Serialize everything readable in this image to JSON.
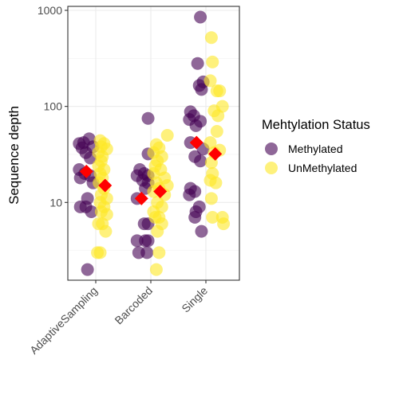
{
  "chart_data": {
    "type": "scatter",
    "title": "",
    "xlabel": "",
    "ylabel": "Sequence depth",
    "y_scale": "log10",
    "ylim": [
      1.55,
      1100
    ],
    "y_ticks": [
      10,
      100,
      1000
    ],
    "y_tick_labels": [
      "10",
      "100",
      "1000"
    ],
    "grid": true,
    "legend_position": "right",
    "legend_title": "Mehtylation Status",
    "categories": [
      "AdaptiveSampling",
      "Barcoded",
      "Single"
    ],
    "series": [
      {
        "name": "Methylated",
        "color": "#440154",
        "points": [
          {
            "category": "AdaptiveSampling",
            "offset": -0.3,
            "y": 41
          },
          {
            "category": "AdaptiveSampling",
            "offset": -0.22,
            "y": 42
          },
          {
            "category": "AdaptiveSampling",
            "offset": -0.12,
            "y": 46
          },
          {
            "category": "AdaptiveSampling",
            "offset": -0.25,
            "y": 37
          },
          {
            "category": "AdaptiveSampling",
            "offset": -0.18,
            "y": 33
          },
          {
            "category": "AdaptiveSampling",
            "offset": -0.05,
            "y": 38
          },
          {
            "category": "AdaptiveSampling",
            "offset": -0.1,
            "y": 29
          },
          {
            "category": "AdaptiveSampling",
            "offset": -0.3,
            "y": 22
          },
          {
            "category": "AdaptiveSampling",
            "offset": -0.2,
            "y": 20
          },
          {
            "category": "AdaptiveSampling",
            "offset": -0.28,
            "y": 18
          },
          {
            "category": "AdaptiveSampling",
            "offset": -0.1,
            "y": 19
          },
          {
            "category": "AdaptiveSampling",
            "offset": -0.05,
            "y": 16
          },
          {
            "category": "AdaptiveSampling",
            "offset": -0.15,
            "y": 11
          },
          {
            "category": "AdaptiveSampling",
            "offset": -0.28,
            "y": 9
          },
          {
            "category": "AdaptiveSampling",
            "offset": -0.18,
            "y": 9
          },
          {
            "category": "AdaptiveSampling",
            "offset": -0.08,
            "y": 8
          },
          {
            "category": "AdaptiveSampling",
            "offset": -0.15,
            "y": 2
          },
          {
            "category": "Barcoded",
            "offset": -0.05,
            "y": 75
          },
          {
            "category": "Barcoded",
            "offset": -0.05,
            "y": 32
          },
          {
            "category": "Barcoded",
            "offset": -0.2,
            "y": 22
          },
          {
            "category": "Barcoded",
            "offset": -0.12,
            "y": 20
          },
          {
            "category": "Barcoded",
            "offset": -0.25,
            "y": 19
          },
          {
            "category": "Barcoded",
            "offset": -0.05,
            "y": 19
          },
          {
            "category": "Barcoded",
            "offset": -0.15,
            "y": 17
          },
          {
            "category": "Barcoded",
            "offset": -0.05,
            "y": 16
          },
          {
            "category": "Barcoded",
            "offset": -0.1,
            "y": 14
          },
          {
            "category": "Barcoded",
            "offset": -0.25,
            "y": 11
          },
          {
            "category": "Barcoded",
            "offset": -0.12,
            "y": 6
          },
          {
            "category": "Barcoded",
            "offset": -0.05,
            "y": 6
          },
          {
            "category": "Barcoded",
            "offset": -0.25,
            "y": 4
          },
          {
            "category": "Barcoded",
            "offset": -0.1,
            "y": 4
          },
          {
            "category": "Barcoded",
            "offset": -0.05,
            "y": 4
          },
          {
            "category": "Barcoded",
            "offset": -0.22,
            "y": 3
          },
          {
            "category": "Barcoded",
            "offset": -0.07,
            "y": 3
          },
          {
            "category": "Single",
            "offset": -0.1,
            "y": 850
          },
          {
            "category": "Single",
            "offset": -0.15,
            "y": 280
          },
          {
            "category": "Single",
            "offset": -0.05,
            "y": 180
          },
          {
            "category": "Single",
            "offset": -0.12,
            "y": 165
          },
          {
            "category": "Single",
            "offset": -0.08,
            "y": 150
          },
          {
            "category": "Single",
            "offset": -0.28,
            "y": 88
          },
          {
            "category": "Single",
            "offset": -0.22,
            "y": 80
          },
          {
            "category": "Single",
            "offset": -0.3,
            "y": 73
          },
          {
            "category": "Single",
            "offset": -0.1,
            "y": 70
          },
          {
            "category": "Single",
            "offset": -0.18,
            "y": 63
          },
          {
            "category": "Single",
            "offset": -0.28,
            "y": 42
          },
          {
            "category": "Single",
            "offset": -0.05,
            "y": 36
          },
          {
            "category": "Single",
            "offset": -0.2,
            "y": 30
          },
          {
            "category": "Single",
            "offset": -0.1,
            "y": 27
          },
          {
            "category": "Single",
            "offset": -0.28,
            "y": 14
          },
          {
            "category": "Single",
            "offset": -0.2,
            "y": 13
          },
          {
            "category": "Single",
            "offset": -0.3,
            "y": 12
          },
          {
            "category": "Single",
            "offset": -0.12,
            "y": 9
          },
          {
            "category": "Single",
            "offset": -0.18,
            "y": 8
          },
          {
            "category": "Single",
            "offset": -0.2,
            "y": 7
          },
          {
            "category": "Single",
            "offset": -0.08,
            "y": 5
          }
        ]
      },
      {
        "name": "UnMethylated",
        "color": "#fde725",
        "points": [
          {
            "category": "AdaptiveSampling",
            "offset": 0.08,
            "y": 44
          },
          {
            "category": "AdaptiveSampling",
            "offset": 0.15,
            "y": 41
          },
          {
            "category": "AdaptiveSampling",
            "offset": 0.1,
            "y": 38
          },
          {
            "category": "AdaptiveSampling",
            "offset": 0.2,
            "y": 36
          },
          {
            "category": "AdaptiveSampling",
            "offset": 0.05,
            "y": 33
          },
          {
            "category": "AdaptiveSampling",
            "offset": 0.12,
            "y": 30
          },
          {
            "category": "AdaptiveSampling",
            "offset": 0.1,
            "y": 27
          },
          {
            "category": "AdaptiveSampling",
            "offset": 0.05,
            "y": 24
          },
          {
            "category": "AdaptiveSampling",
            "offset": 0.15,
            "y": 22
          },
          {
            "category": "AdaptiveSampling",
            "offset": 0.08,
            "y": 20
          },
          {
            "category": "AdaptiveSampling",
            "offset": 0.12,
            "y": 18
          },
          {
            "category": "AdaptiveSampling",
            "offset": 0.06,
            "y": 16
          },
          {
            "category": "AdaptiveSampling",
            "offset": 0.15,
            "y": 14
          },
          {
            "category": "AdaptiveSampling",
            "offset": 0.1,
            "y": 12
          },
          {
            "category": "AdaptiveSampling",
            "offset": 0.2,
            "y": 11
          },
          {
            "category": "AdaptiveSampling",
            "offset": 0.08,
            "y": 10
          },
          {
            "category": "AdaptiveSampling",
            "offset": 0.15,
            "y": 9
          },
          {
            "category": "AdaptiveSampling",
            "offset": 0.1,
            "y": 8
          },
          {
            "category": "AdaptiveSampling",
            "offset": 0.2,
            "y": 7.5
          },
          {
            "category": "AdaptiveSampling",
            "offset": 0.12,
            "y": 6
          },
          {
            "category": "AdaptiveSampling",
            "offset": 0.05,
            "y": 6
          },
          {
            "category": "AdaptiveSampling",
            "offset": 0.18,
            "y": 5
          },
          {
            "category": "AdaptiveSampling",
            "offset": 0.03,
            "y": 3
          },
          {
            "category": "AdaptiveSampling",
            "offset": 0.08,
            "y": 3
          },
          {
            "category": "Barcoded",
            "offset": 0.3,
            "y": 50
          },
          {
            "category": "Barcoded",
            "offset": 0.1,
            "y": 40
          },
          {
            "category": "Barcoded",
            "offset": 0.15,
            "y": 37
          },
          {
            "category": "Barcoded",
            "offset": 0.05,
            "y": 33
          },
          {
            "category": "Barcoded",
            "offset": 0.2,
            "y": 30
          },
          {
            "category": "Barcoded",
            "offset": 0.12,
            "y": 27
          },
          {
            "category": "Barcoded",
            "offset": 0.08,
            "y": 24
          },
          {
            "category": "Barcoded",
            "offset": 0.18,
            "y": 22
          },
          {
            "category": "Barcoded",
            "offset": 0.05,
            "y": 20
          },
          {
            "category": "Barcoded",
            "offset": 0.25,
            "y": 18
          },
          {
            "category": "Barcoded",
            "offset": 0.1,
            "y": 16
          },
          {
            "category": "Barcoded",
            "offset": 0.15,
            "y": 14
          },
          {
            "category": "Barcoded",
            "offset": 0.3,
            "y": 15
          },
          {
            "category": "Barcoded",
            "offset": 0.05,
            "y": 13
          },
          {
            "category": "Barcoded",
            "offset": 0.25,
            "y": 12
          },
          {
            "category": "Barcoded",
            "offset": 0.12,
            "y": 10
          },
          {
            "category": "Barcoded",
            "offset": 0.2,
            "y": 9
          },
          {
            "category": "Barcoded",
            "offset": 0.05,
            "y": 8
          },
          {
            "category": "Barcoded",
            "offset": 0.15,
            "y": 7
          },
          {
            "category": "Barcoded",
            "offset": 0.08,
            "y": 7
          },
          {
            "category": "Barcoded",
            "offset": 0.2,
            "y": 6
          },
          {
            "category": "Barcoded",
            "offset": 0.12,
            "y": 5
          },
          {
            "category": "Barcoded",
            "offset": 0.15,
            "y": 3
          },
          {
            "category": "Barcoded",
            "offset": 0.1,
            "y": 2
          },
          {
            "category": "Single",
            "offset": 0.1,
            "y": 520
          },
          {
            "category": "Single",
            "offset": 0.12,
            "y": 290
          },
          {
            "category": "Single",
            "offset": 0.08,
            "y": 185
          },
          {
            "category": "Single",
            "offset": 0.2,
            "y": 145
          },
          {
            "category": "Single",
            "offset": 0.25,
            "y": 145
          },
          {
            "category": "Single",
            "offset": 0.3,
            "y": 100
          },
          {
            "category": "Single",
            "offset": 0.15,
            "y": 90
          },
          {
            "category": "Single",
            "offset": 0.22,
            "y": 80
          },
          {
            "category": "Single",
            "offset": 0.2,
            "y": 55
          },
          {
            "category": "Single",
            "offset": 0.08,
            "y": 42
          },
          {
            "category": "Single",
            "offset": 0.25,
            "y": 35
          },
          {
            "category": "Single",
            "offset": 0.15,
            "y": 33
          },
          {
            "category": "Single",
            "offset": 0.1,
            "y": 26
          },
          {
            "category": "Single",
            "offset": 0.12,
            "y": 20
          },
          {
            "category": "Single",
            "offset": 0.08,
            "y": 17
          },
          {
            "category": "Single",
            "offset": 0.18,
            "y": 16
          },
          {
            "category": "Single",
            "offset": 0.1,
            "y": 11
          },
          {
            "category": "Single",
            "offset": 0.12,
            "y": 7
          },
          {
            "category": "Single",
            "offset": 0.3,
            "y": 7
          },
          {
            "category": "Single",
            "offset": 0.32,
            "y": 6
          }
        ]
      }
    ],
    "summary_markers": {
      "shape": "diamond",
      "color": "#ff0000",
      "points": [
        {
          "category": "AdaptiveSampling",
          "offset": -0.17,
          "y": 21
        },
        {
          "category": "AdaptiveSampling",
          "offset": 0.17,
          "y": 15
        },
        {
          "category": "Barcoded",
          "offset": -0.17,
          "y": 11
        },
        {
          "category": "Barcoded",
          "offset": 0.17,
          "y": 13
        },
        {
          "category": "Single",
          "offset": -0.17,
          "y": 42
        },
        {
          "category": "Single",
          "offset": 0.17,
          "y": 32
        }
      ]
    }
  }
}
